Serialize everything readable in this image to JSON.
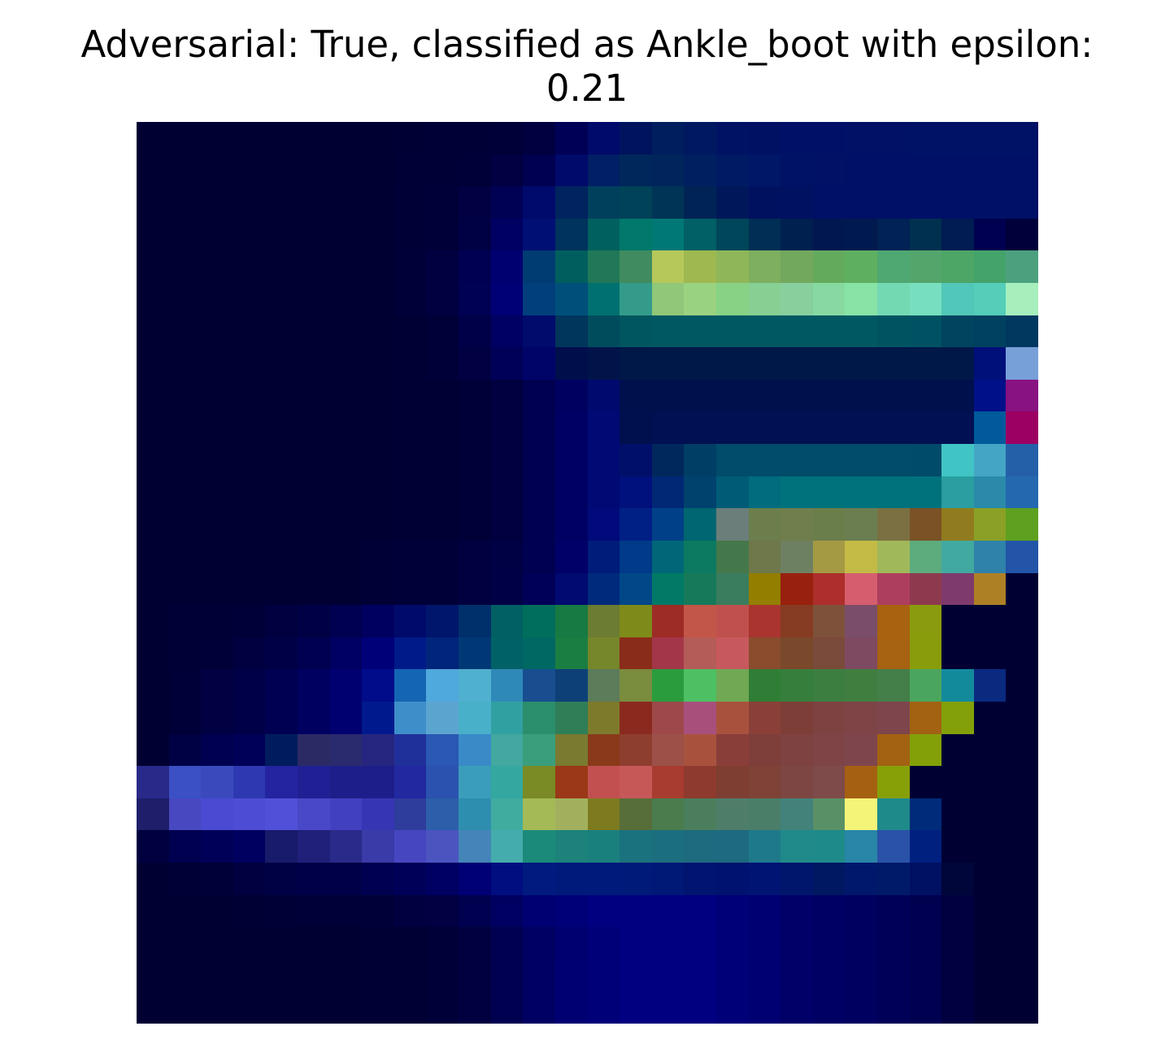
{
  "title": "Adversarial: True, classified as Ankle_boot with epsilon:\n0.21",
  "image": {
    "description_name": "adversarial-saliency-heatmap",
    "grid_rows": 28,
    "grid_cols": 28,
    "background_color": "#000033",
    "row_hex": [
      "000033000033000033000033000033000033000033000033000035000036000036000038000040000056000a6b00145e001e5e0018600012640011640010660010660011660011660012660012660012660012660",
      "000033000033000033000033000033000033000033000033000036000037000038000042000050000a6a001f6400275b00255c001f60001a640016660012660011660010660010660010660010660010660010660",
      "000033000033000033000033000033000033000033000033000037000039000042000055000a6c00245f00405c00425800345600235600185a00116000116200106600106600106600106600106600106600106600",
      "000033000033000033000033000033000033000033000033000037000039000045000062000f7400335d00605f00786a00787600606600465a002e5400205000184f00194e00225400304f001c5200005000003a00",
      "000033000033000033000033000033000033000033000033000038000040000052000070003b72005f5e207858408b60b6c85a9fb84f8fb75a7daf5f72a85d64aa5d5faf614fa87154a56c4da56643a36a4da07d40a1803a8a9338a3b9359f943f8ab5005d00",
      "000033000033000033000033000033000033000033000033000038000040000054000074003f7c004f7b007070349b8a90c77999d28087d28587d09387d09e88d9a187e3a673d9b377dfbf50c7b854cdb9a6efbdbcd26a63af86004786",
      "000033000033000033000033000033000033000033000033000035000039000048000062000b6c00355c004c5d00566000586200586200586200586200586200586200586200546200526200446000406000386000247a5ae0ec7cc4f8c4134a8a",
      "000033000033000033000033000033000033000033000033000035000038000042000058000468000e4c00144a00184800184800184800184800184800184800184800184800184800184800184800107a77a0d9a43aada32a5ea8",
      "000033000033000033000033000033000033000033000033000034000035000038000040000050000060000a6e00104c00104c00104c00104c00104c00104c00104c00104c00104c00104c00104c001088881281951044851336a4",
      "000033000033000033000033000033000033000033000033000034000035000038000040000050000064000a7400104e001052001052001052001052001052001052001052001052001052001052005a9c9c00627a18418e2e40b0",
      "000033000033000033000033000033000033000033000033000034000035000038000040000050000064000a7400106a00285c003e66004c6a004c6a004c6a004c6a004c6a004c6a004a6a40c4c444a6c42460a83440a8",
      "000033000033000033000033000033000033000033000033000034000035000038000040000050000064000a7400107c00287400426e005c76006c7e00727c00727c00727c00727c00727c2a9ea02a8aa82468b03040a8",
      "000033000033000033000033000033000033000033000033000034000035000038000040000050000064000a7a0020860040880066726b7e7a6b7e4c6f7e4c6a7e4a6a7e507a70427a5226907c1e8aa0265ea01f2f9a",
      "000033000033000033000033000033000033000033000036000038000039000040000044000050000068001c7a003a880066780c7a6044784a6e784a6e8062a49a44c4ba46a0b85a5cac7e42a9a02f82aa2254a8",
      "000033000033000033000033000033000033000033000036000038000039000040000046000058000a70002a7c004888007a66167a5a3a7c5e947e0098200ead2e2ad55e6eae3e5e8e3a4e7e3a6bae80268a9c",
      "000033000036000037000039000040000046000050000060000a6a00166c00306c006064006e5c167a426c7c327e8a1a9c2c24c25648c0504ea93430863c227e523a7a4e6aa862108a9c0e2a80",
      "000033000037000039000040000046000050000062000079001b8900257a0038760062660068621a7e4276862a8a2c1aa4364ab45c58c7585e8b4c2e7a482a7a4a3a7e4a62a76212889c0c2a7c",
      "000033000038000042000048000052000060000070000c8a1466b450a9dc4fb0cf2f89b8184e900e40785c7c5a7a8c3e2a9c3e4cc06270a854307e36367e3c3c7e40407e40447e484aa65e128a9c0a2a80",
      "000033000038000042000048000052000060000070001a8e3e8eca5ca4d048b0c831a0a02b8e6c2f7e587e7a2c8a2a1e9e484aa7507ca8523e8a40387e3e387e42407e44467e464ca2621283a00a2a80",
      "000033000044000050000058001c5e2c2a642a2a6e26268020309a2a58b43a8ac842a8a03a9e7c7a7a308a3a1a8e3e2e9c5048a8523e8a3e3a7e3e3a7e42407e44467e464ca2621283a0082a80",
      "29298a3a50c43a4abc2e38b02424a02020941e1e8a1e1e8a2228a02a52ae3a9eba34a8a07a8a249a3818c25050c75858a83c308e3a2e7e3e327e42367e46427e4a4aa6601288a0082a80",
      "1e1e6a4848c04a4ad24c4cd45050d84848c84040c03636b42e3c9c2c5eaa2e8eb040aca0a4ba56a2b05e7e7a20586e3a4a7c4e4a7e5c4e7e6a4a7e6842827a5a9066f4f4781e8a8a002a7a",
      "000040000050000058000060181a6a20207a2a2a8a3a3aa84646c04c54c04484b844acac1c8a7a1c827a1a807e1a727e1a6e7e1e6a7e1e6a801e7a8a208a8a1e8a8a2886a82a52a8002080",
      "000033000036000038000040000044000048000048000050000058000062000074000e80001a80001a7c001a7c001a7a00187600147000127000147400166c00186200186c001a6a00106200063a",
      "000033000033000033000034000036000038000038000038000040000042000050000062000072000078000080000080000080000080000078000072000068000064000060000058000050000040",
      "000033000033000033000033000033000033000033000034000035000038000040000050000062000070000078000080000080000080000078000072000068000064000060000058000050000040",
      "000033000033000033000033000033000033000033000034000035000038000040000050000062000072000078000080000080000080000078000072000068000064000060000058000050000040",
      "000033000033000033000033000033000033000033000034000035000038000040000050000062000072000078000080000080000080000078000072000068000064000060000058000050000040"
    ]
  }
}
